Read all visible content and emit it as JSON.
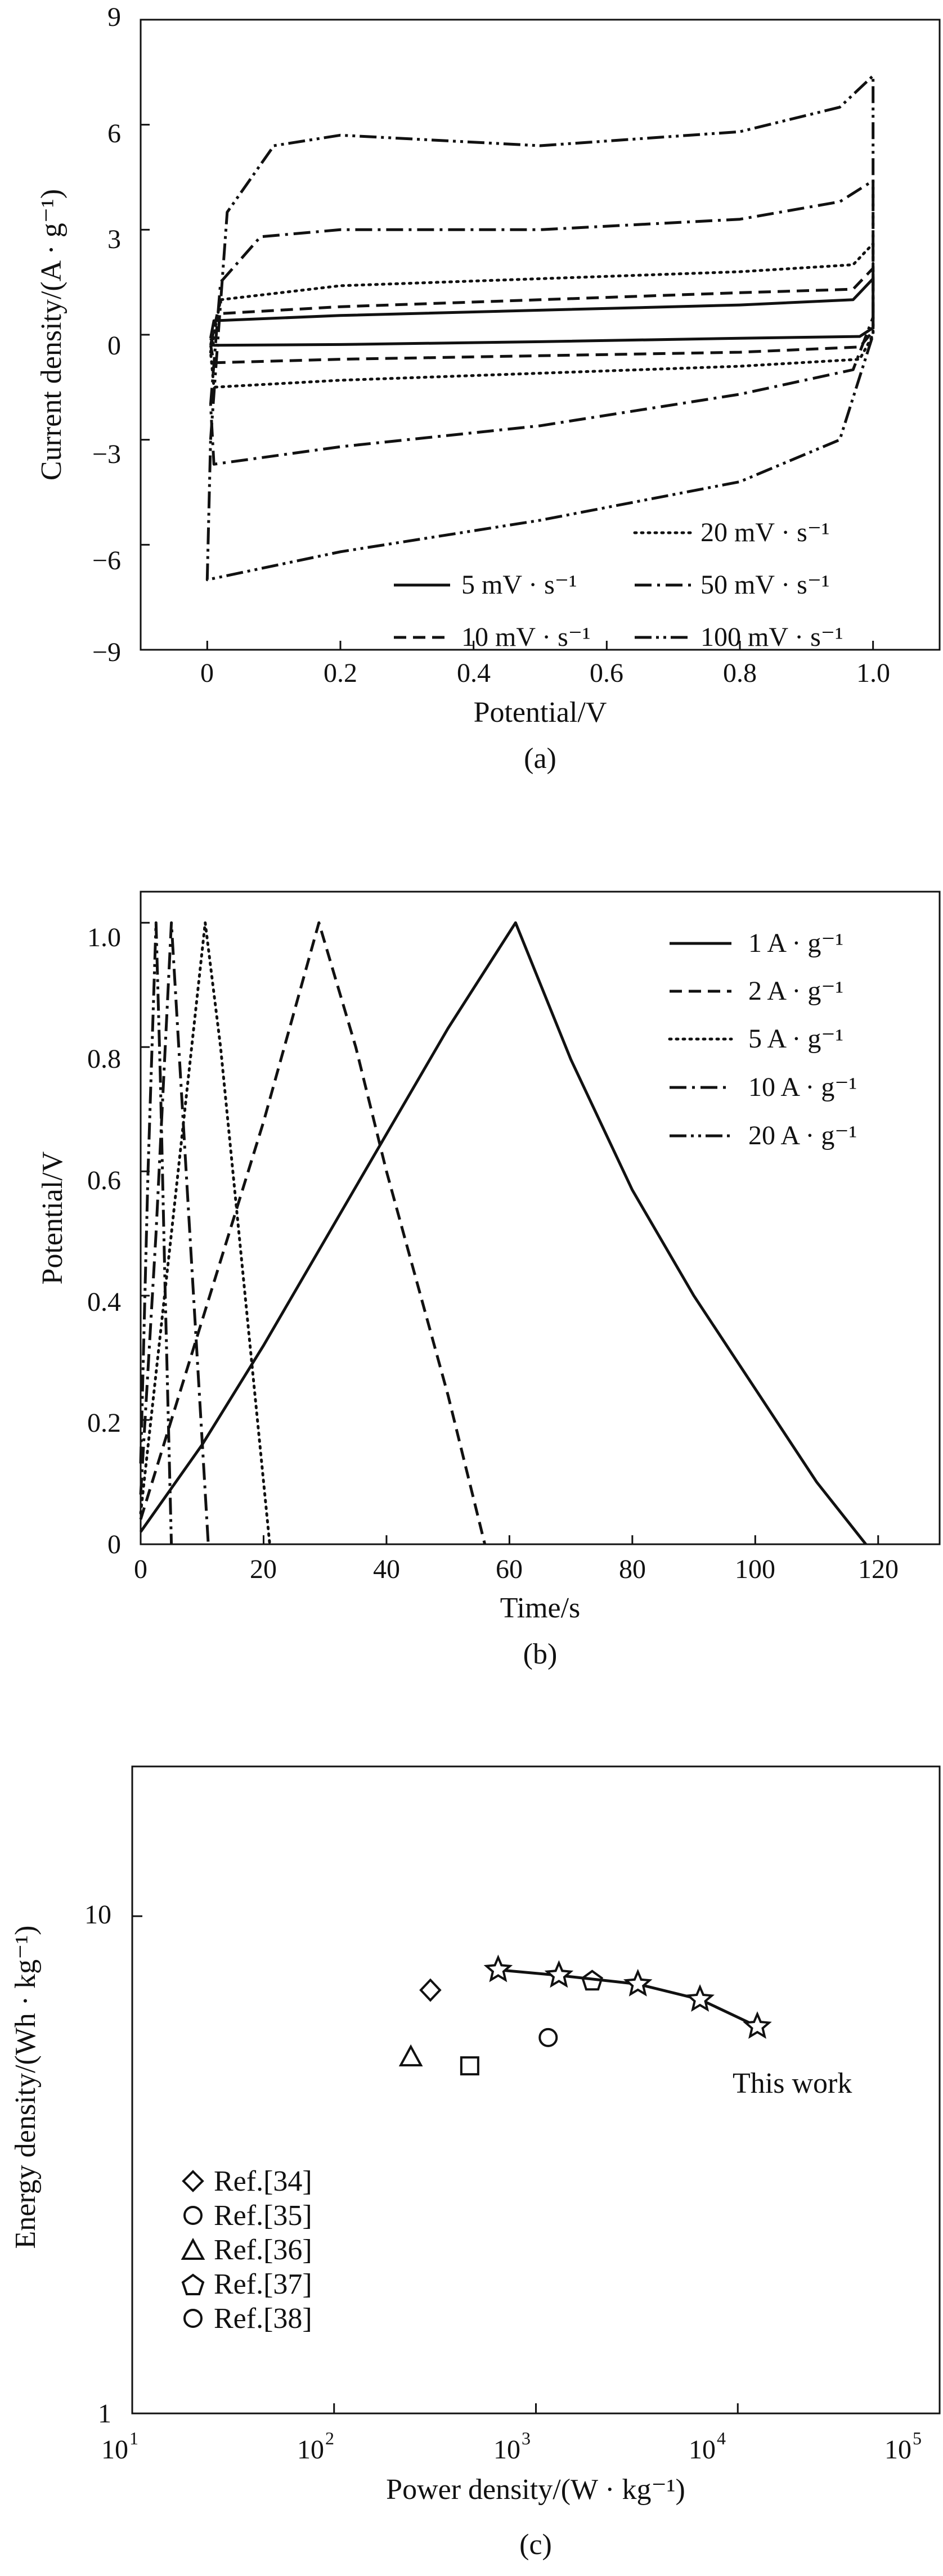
{
  "panels": {
    "a": {
      "caption": "(a)",
      "xlabel": "Potential/V",
      "ylabel": "Current density/(A · g⁻¹)",
      "xticks": [
        "0",
        "0.2",
        "0.4",
        "0.6",
        "0.8",
        "1.0"
      ],
      "yticks": [
        "9",
        "6",
        "3",
        "0",
        "−3",
        "−6",
        "−9"
      ],
      "legend": {
        "l0": "5 mV · s⁻¹",
        "l1": "10 mV · s⁻¹",
        "l2": "20 mV · s⁻¹",
        "l3": "50 mV · s⁻¹",
        "l4": "100 mV · s⁻¹"
      }
    },
    "b": {
      "caption": "(b)",
      "xlabel": "Time/s",
      "ylabel": "Potential/V",
      "xticks": [
        "0",
        "20",
        "40",
        "60",
        "80",
        "100",
        "120"
      ],
      "yticks": [
        "0",
        "0.2",
        "0.4",
        "0.6",
        "0.8",
        "1.0"
      ],
      "legend": {
        "l0": "1  A · g⁻¹",
        "l1": "2  A · g⁻¹",
        "l2": "5  A · g⁻¹",
        "l3": "10  A · g⁻¹",
        "l4": "20  A · g⁻¹"
      }
    },
    "c": {
      "caption": "(c)",
      "xlabel": "Power density/(W · kg⁻¹)",
      "ylabel": "Energy density/(Wh · kg⁻¹)",
      "yticks": [
        "10",
        "1"
      ],
      "xtick_exponents": [
        "1",
        "2",
        "3",
        "4",
        "5"
      ],
      "this_work_label": "This work",
      "legend": {
        "l0": "Ref.[34]",
        "l1": "Ref.[35]",
        "l2": "Ref.[36]",
        "l3": "Ref.[37]",
        "l4": "Ref.[38]"
      }
    }
  },
  "chart_data": [
    {
      "panel": "a",
      "type": "line",
      "xlabel": "Potential/V",
      "ylabel": "Current density/(A · g⁻¹)",
      "xlim": [
        -0.1,
        1.1
      ],
      "ylim": [
        -9,
        9
      ],
      "legend_position": "bottom-right",
      "series": [
        {
          "name": "5 mV · s⁻¹",
          "dash": "solid",
          "upper": [
            [
              0.005,
              -0.1
            ],
            [
              0.01,
              0.4
            ],
            [
              0.2,
              0.55
            ],
            [
              0.5,
              0.7
            ],
            [
              0.8,
              0.85
            ],
            [
              0.97,
              1.0
            ],
            [
              1.0,
              1.6
            ]
          ],
          "lower": [
            [
              1.0,
              0.2
            ],
            [
              0.98,
              -0.05
            ],
            [
              0.8,
              -0.1
            ],
            [
              0.5,
              -0.2
            ],
            [
              0.2,
              -0.28
            ],
            [
              0.01,
              -0.3
            ],
            [
              0.005,
              -0.1
            ]
          ]
        },
        {
          "name": "10 mV · s⁻¹",
          "dash": "dashed",
          "upper": [
            [
              0.005,
              -0.3
            ],
            [
              0.015,
              0.6
            ],
            [
              0.2,
              0.8
            ],
            [
              0.5,
              1.0
            ],
            [
              0.8,
              1.2
            ],
            [
              0.97,
              1.3
            ],
            [
              1.0,
              1.9
            ]
          ],
          "lower": [
            [
              1.0,
              0.1
            ],
            [
              0.98,
              -0.35
            ],
            [
              0.8,
              -0.5
            ],
            [
              0.5,
              -0.6
            ],
            [
              0.2,
              -0.7
            ],
            [
              0.01,
              -0.8
            ],
            [
              0.005,
              -0.3
            ]
          ]
        },
        {
          "name": "20 mV · s⁻¹",
          "dash": "dotted",
          "upper": [
            [
              0.005,
              -0.5
            ],
            [
              0.02,
              1.0
            ],
            [
              0.2,
              1.4
            ],
            [
              0.5,
              1.6
            ],
            [
              0.8,
              1.8
            ],
            [
              0.97,
              2.0
            ],
            [
              1.0,
              2.6
            ]
          ],
          "lower": [
            [
              1.0,
              0.0
            ],
            [
              0.98,
              -0.7
            ],
            [
              0.8,
              -0.9
            ],
            [
              0.5,
              -1.1
            ],
            [
              0.2,
              -1.3
            ],
            [
              0.01,
              -1.5
            ],
            [
              0.005,
              -0.5
            ]
          ]
        },
        {
          "name": "50 mV · s⁻¹",
          "dash": "dashdot",
          "upper": [
            [
              0.005,
              -2.0
            ],
            [
              0.02,
              1.5
            ],
            [
              0.08,
              2.8
            ],
            [
              0.2,
              3.0
            ],
            [
              0.5,
              3.0
            ],
            [
              0.8,
              3.3
            ],
            [
              0.95,
              3.8
            ],
            [
              1.0,
              4.4
            ]
          ],
          "lower": [
            [
              1.0,
              0.5
            ],
            [
              0.97,
              -1.0
            ],
            [
              0.8,
              -1.7
            ],
            [
              0.5,
              -2.6
            ],
            [
              0.2,
              -3.2
            ],
            [
              0.01,
              -3.7
            ],
            [
              0.005,
              -2.0
            ]
          ]
        },
        {
          "name": "100 mV · s⁻¹",
          "dash": "dashdotdot",
          "upper": [
            [
              0.005,
              -3.0
            ],
            [
              0.03,
              3.5
            ],
            [
              0.1,
              5.4
            ],
            [
              0.2,
              5.7
            ],
            [
              0.5,
              5.4
            ],
            [
              0.8,
              5.8
            ],
            [
              0.95,
              6.5
            ],
            [
              1.0,
              7.4
            ]
          ],
          "lower": [
            [
              1.0,
              0.0
            ],
            [
              0.95,
              -3.0
            ],
            [
              0.8,
              -4.2
            ],
            [
              0.5,
              -5.3
            ],
            [
              0.2,
              -6.2
            ],
            [
              0.0,
              -7.0
            ],
            [
              0.005,
              -3.0
            ]
          ]
        }
      ]
    },
    {
      "panel": "b",
      "type": "line",
      "xlabel": "Time/s",
      "ylabel": "Potential/V",
      "xlim": [
        0,
        130
      ],
      "ylim": [
        0,
        1.05
      ],
      "legend_position": "top-right",
      "series": [
        {
          "name": "1  A · g⁻¹",
          "dash": "solid",
          "points": [
            [
              0,
              0.02
            ],
            [
              10,
              0.16
            ],
            [
              20,
              0.32
            ],
            [
              30,
              0.49
            ],
            [
              40,
              0.66
            ],
            [
              50,
              0.83
            ],
            [
              61,
              1.0
            ],
            [
              70,
              0.78
            ],
            [
              80,
              0.57
            ],
            [
              90,
              0.4
            ],
            [
              100,
              0.25
            ],
            [
              110,
              0.1
            ],
            [
              118,
              0.0
            ]
          ]
        },
        {
          "name": "2  A · g⁻¹",
          "dash": "dashed",
          "points": [
            [
              0,
              0.04
            ],
            [
              10,
              0.36
            ],
            [
              20,
              0.68
            ],
            [
              29,
              1.0
            ],
            [
              35,
              0.8
            ],
            [
              40,
              0.6
            ],
            [
              45,
              0.42
            ],
            [
              50,
              0.24
            ],
            [
              56,
              0.0
            ]
          ]
        },
        {
          "name": "5  A · g⁻¹",
          "dash": "dotted",
          "points": [
            [
              0,
              0.05
            ],
            [
              5,
              0.5
            ],
            [
              10.5,
              1.0
            ],
            [
              13,
              0.8
            ],
            [
              15.5,
              0.55
            ],
            [
              18,
              0.3
            ],
            [
              21,
              0.0
            ]
          ]
        },
        {
          "name": "10  A · g⁻¹",
          "dash": "dashdot",
          "points": [
            [
              0,
              0.08
            ],
            [
              2.5,
              0.5
            ],
            [
              5,
              1.0
            ],
            [
              6.5,
              0.75
            ],
            [
              8,
              0.5
            ],
            [
              9.5,
              0.25
            ],
            [
              11,
              0.0
            ]
          ]
        },
        {
          "name": "20  A · g⁻¹",
          "dash": "dashdotdot",
          "points": [
            [
              0,
              0.13
            ],
            [
              1.2,
              0.6
            ],
            [
              2.5,
              1.0
            ],
            [
              3.2,
              0.75
            ],
            [
              4,
              0.4
            ],
            [
              5,
              0.0
            ]
          ]
        }
      ]
    },
    {
      "panel": "c",
      "type": "scatter",
      "xlabel": "Power density/(W · kg⁻¹)",
      "ylabel": "Energy density/(Wh · kg⁻¹)",
      "xscale": "log",
      "yscale": "log",
      "xlim": [
        10,
        100000
      ],
      "ylim": [
        1,
        20
      ],
      "legend_position": "bottom-left",
      "series": [
        {
          "name": "This work",
          "marker": "star",
          "connected": true,
          "points": [
            [
              650,
              7.8
            ],
            [
              1300,
              7.6
            ],
            [
              3200,
              7.3
            ],
            [
              6500,
              6.8
            ],
            [
              12500,
              6.0
            ]
          ]
        },
        {
          "name": "Ref.[34]",
          "marker": "diamond",
          "points": [
            [
              300,
              7.1
            ]
          ]
        },
        {
          "name": "Ref.[35]",
          "marker": "circle",
          "points": [
            [
              1150,
              5.7
            ]
          ]
        },
        {
          "name": "Ref.[36]",
          "marker": "triangle",
          "points": [
            [
              240,
              5.2
            ]
          ]
        },
        {
          "name": "Ref.[37]",
          "marker": "pentagon",
          "points": [
            [
              1900,
              7.4
            ]
          ]
        },
        {
          "name": "Ref.[38]",
          "marker": "square",
          "points": [
            [
              470,
              5.0
            ]
          ]
        }
      ]
    }
  ]
}
